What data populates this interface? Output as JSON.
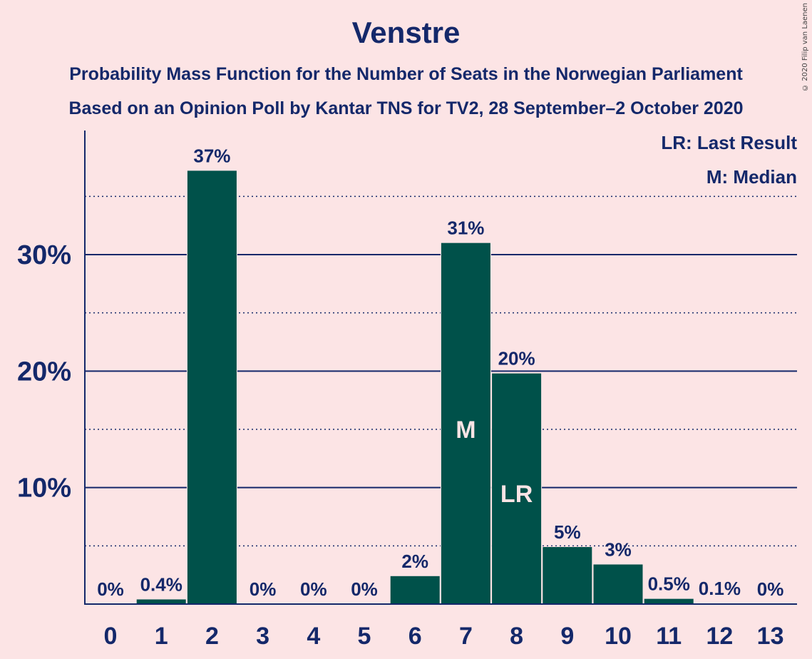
{
  "title": "Venstre",
  "subtitle_line1": "Probability Mass Function for the Number of Seats in the Norwegian Parliament",
  "subtitle_line2": "Based on an Opinion Poll by Kantar TNS for TV2, 28 September–2 October 2020",
  "copyright": "© 2020 Filip van Laenen",
  "legend": [
    "LR: Last Result",
    "M: Median"
  ],
  "colors": {
    "background": "#FCE4E5",
    "bar": "#00514A",
    "text": "#14286A",
    "bar_marker_text": "#FCE4E5"
  },
  "chart_data": {
    "type": "bar",
    "categories": [
      "0",
      "1",
      "2",
      "3",
      "4",
      "5",
      "6",
      "7",
      "8",
      "9",
      "10",
      "11",
      "12",
      "13"
    ],
    "values": [
      0,
      0.4,
      37.2,
      0,
      0,
      0,
      2.4,
      31.0,
      19.8,
      4.9,
      3.4,
      0.45,
      0.05,
      0
    ],
    "value_labels": [
      "0%",
      "0.4%",
      "37%",
      "0%",
      "0%",
      "0%",
      "2%",
      "31%",
      "20%",
      "5%",
      "3%",
      "0.5%",
      "0.1%",
      "0%"
    ],
    "bar_markers": {
      "7": "M",
      "8": "LR"
    },
    "y_ticks": [
      10,
      20,
      30
    ],
    "y_tick_labels": [
      "10%",
      "20%",
      "30%"
    ],
    "ylim": [
      0,
      40.5
    ],
    "grid": {
      "solid": [
        10,
        20,
        30
      ],
      "dotted": [
        5,
        15,
        25,
        35
      ]
    },
    "legend_position": "top-right"
  }
}
